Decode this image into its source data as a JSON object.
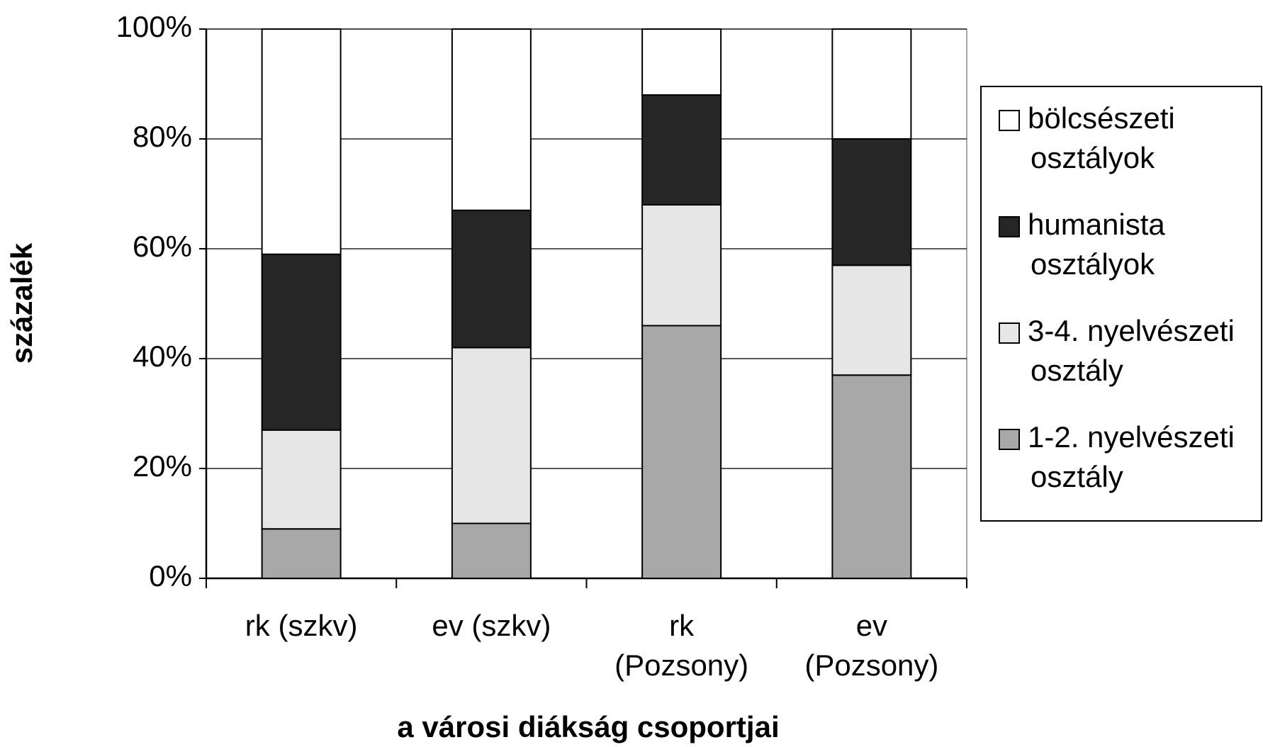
{
  "chart_data": {
    "type": "stacked_bar",
    "x_label": "a városi diákság csoportjai",
    "y_label": "százalék",
    "categories": [
      "rk (szkv)",
      "ev (szkv)",
      "rk (Pozsony)",
      "ev (Pozsony)"
    ],
    "series": [
      {
        "name": "1-2. nyelvészeti osztály",
        "color": "#a8a8a8",
        "values": [
          9,
          10,
          46,
          37
        ]
      },
      {
        "name": "3-4. nyelvészeti osztály",
        "color": "#e6e6e6",
        "values": [
          18,
          32,
          22,
          20
        ]
      },
      {
        "name": "humanista osztályok",
        "color": "#262626",
        "values": [
          32,
          25,
          20,
          23
        ]
      },
      {
        "name": "bölcsészeti osztályok",
        "color": "#ffffff",
        "values": [
          41,
          33,
          12,
          20
        ]
      }
    ],
    "ylim": [
      0,
      100
    ],
    "yticks": [
      {
        "value": 0,
        "label": "0%"
      },
      {
        "value": 20,
        "label": "20%"
      },
      {
        "value": 40,
        "label": "40%"
      },
      {
        "value": 60,
        "label": "60%"
      },
      {
        "value": 80,
        "label": "80%"
      },
      {
        "value": 100,
        "label": "100%"
      }
    ],
    "grid": true,
    "legend": "right"
  }
}
